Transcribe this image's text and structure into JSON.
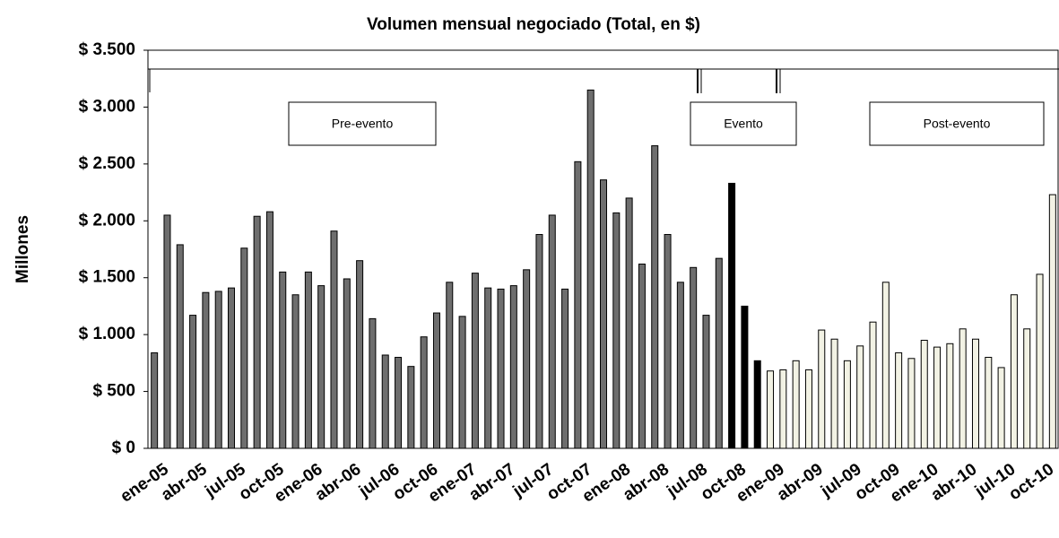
{
  "chart_data": {
    "type": "bar",
    "title": "Volumen mensual negociado (Total, en $)",
    "y_label": "Millones",
    "categories": [
      "ene-05",
      null,
      null,
      "abr-05",
      null,
      null,
      "jul-05",
      null,
      null,
      "oct-05",
      null,
      null,
      "ene-06",
      null,
      null,
      "abr-06",
      null,
      null,
      "jul-06",
      null,
      null,
      "oct-06",
      null,
      null,
      "ene-07",
      null,
      null,
      "abr-07",
      null,
      null,
      "jul-07",
      null,
      null,
      "oct-07",
      null,
      null,
      "ene-08",
      null,
      null,
      "abr-08",
      null,
      null,
      "jul-08",
      null,
      null,
      "oct-08",
      null,
      null,
      "ene-09",
      null,
      null,
      "abr-09",
      null,
      null,
      "jul-09",
      null,
      null,
      "oct-09",
      null,
      null,
      "ene-10",
      null,
      null,
      "abr-10",
      null,
      null,
      "jul-10",
      null,
      null,
      "oct-10",
      null
    ],
    "values": [
      840,
      2050,
      1790,
      1170,
      1370,
      1380,
      1410,
      1760,
      2040,
      2080,
      1550,
      1350,
      1550,
      1430,
      1910,
      1490,
      1650,
      1140,
      820,
      800,
      720,
      980,
      1190,
      1460,
      1160,
      1540,
      1410,
      1400,
      1430,
      1570,
      1880,
      2050,
      1400,
      2520,
      3150,
      2360,
      2070,
      2200,
      1620,
      2660,
      1880,
      1460,
      1590,
      1170,
      1670,
      2330,
      1250,
      770,
      680,
      690,
      770,
      690,
      1040,
      960,
      770,
      900,
      1110,
      1460,
      840,
      790,
      950,
      890,
      920,
      1050,
      960,
      800,
      710,
      1350,
      1050,
      1530,
      2230
    ],
    "colors": [
      "#6e6e6e",
      "#6e6e6e",
      "#6e6e6e",
      "#6e6e6e",
      "#6e6e6e",
      "#6e6e6e",
      "#6e6e6e",
      "#6e6e6e",
      "#6e6e6e",
      "#6e6e6e",
      "#6e6e6e",
      "#6e6e6e",
      "#6e6e6e",
      "#6e6e6e",
      "#6e6e6e",
      "#6e6e6e",
      "#6e6e6e",
      "#6e6e6e",
      "#6e6e6e",
      "#6e6e6e",
      "#6e6e6e",
      "#6e6e6e",
      "#6e6e6e",
      "#6e6e6e",
      "#6e6e6e",
      "#6e6e6e",
      "#6e6e6e",
      "#6e6e6e",
      "#6e6e6e",
      "#6e6e6e",
      "#6e6e6e",
      "#6e6e6e",
      "#6e6e6e",
      "#6e6e6e",
      "#6e6e6e",
      "#6e6e6e",
      "#6e6e6e",
      "#6e6e6e",
      "#6e6e6e",
      "#6e6e6e",
      "#6e6e6e",
      "#6e6e6e",
      "#6e6e6e",
      "#6e6e6e",
      "#6e6e6e",
      "#000000",
      "#000000",
      "#000000",
      "#f2f2e4",
      "#f2f2e4",
      "#f2f2e4",
      "#f2f2e4",
      "#f2f2e4",
      "#f2f2e4",
      "#f2f2e4",
      "#f2f2e4",
      "#f2f2e4",
      "#f2f2e4",
      "#f2f2e4",
      "#f2f2e4",
      "#f2f2e4",
      "#f2f2e4",
      "#f2f2e4",
      "#f2f2e4",
      "#f2f2e4",
      "#f2f2e4",
      "#f2f2e4",
      "#f2f2e4",
      "#f2f2e4",
      "#f2f2e4",
      "#f2f2e4"
    ],
    "ylim": [
      0,
      3500
    ],
    "yticks": [
      {
        "value": 0,
        "label": "$ 0"
      },
      {
        "value": 500,
        "label": "$ 500"
      },
      {
        "value": 1000,
        "label": "$ 1.000"
      },
      {
        "value": 1500,
        "label": "$ 1.500"
      },
      {
        "value": 2000,
        "label": "$ 2.000"
      },
      {
        "value": 2500,
        "label": "$ 2.500"
      },
      {
        "value": 3000,
        "label": "$ 3.000"
      },
      {
        "value": 3500,
        "label": "$ 3.500"
      }
    ],
    "annotations": [
      "Pre-evento",
      "Evento",
      "Post-evento"
    ]
  }
}
